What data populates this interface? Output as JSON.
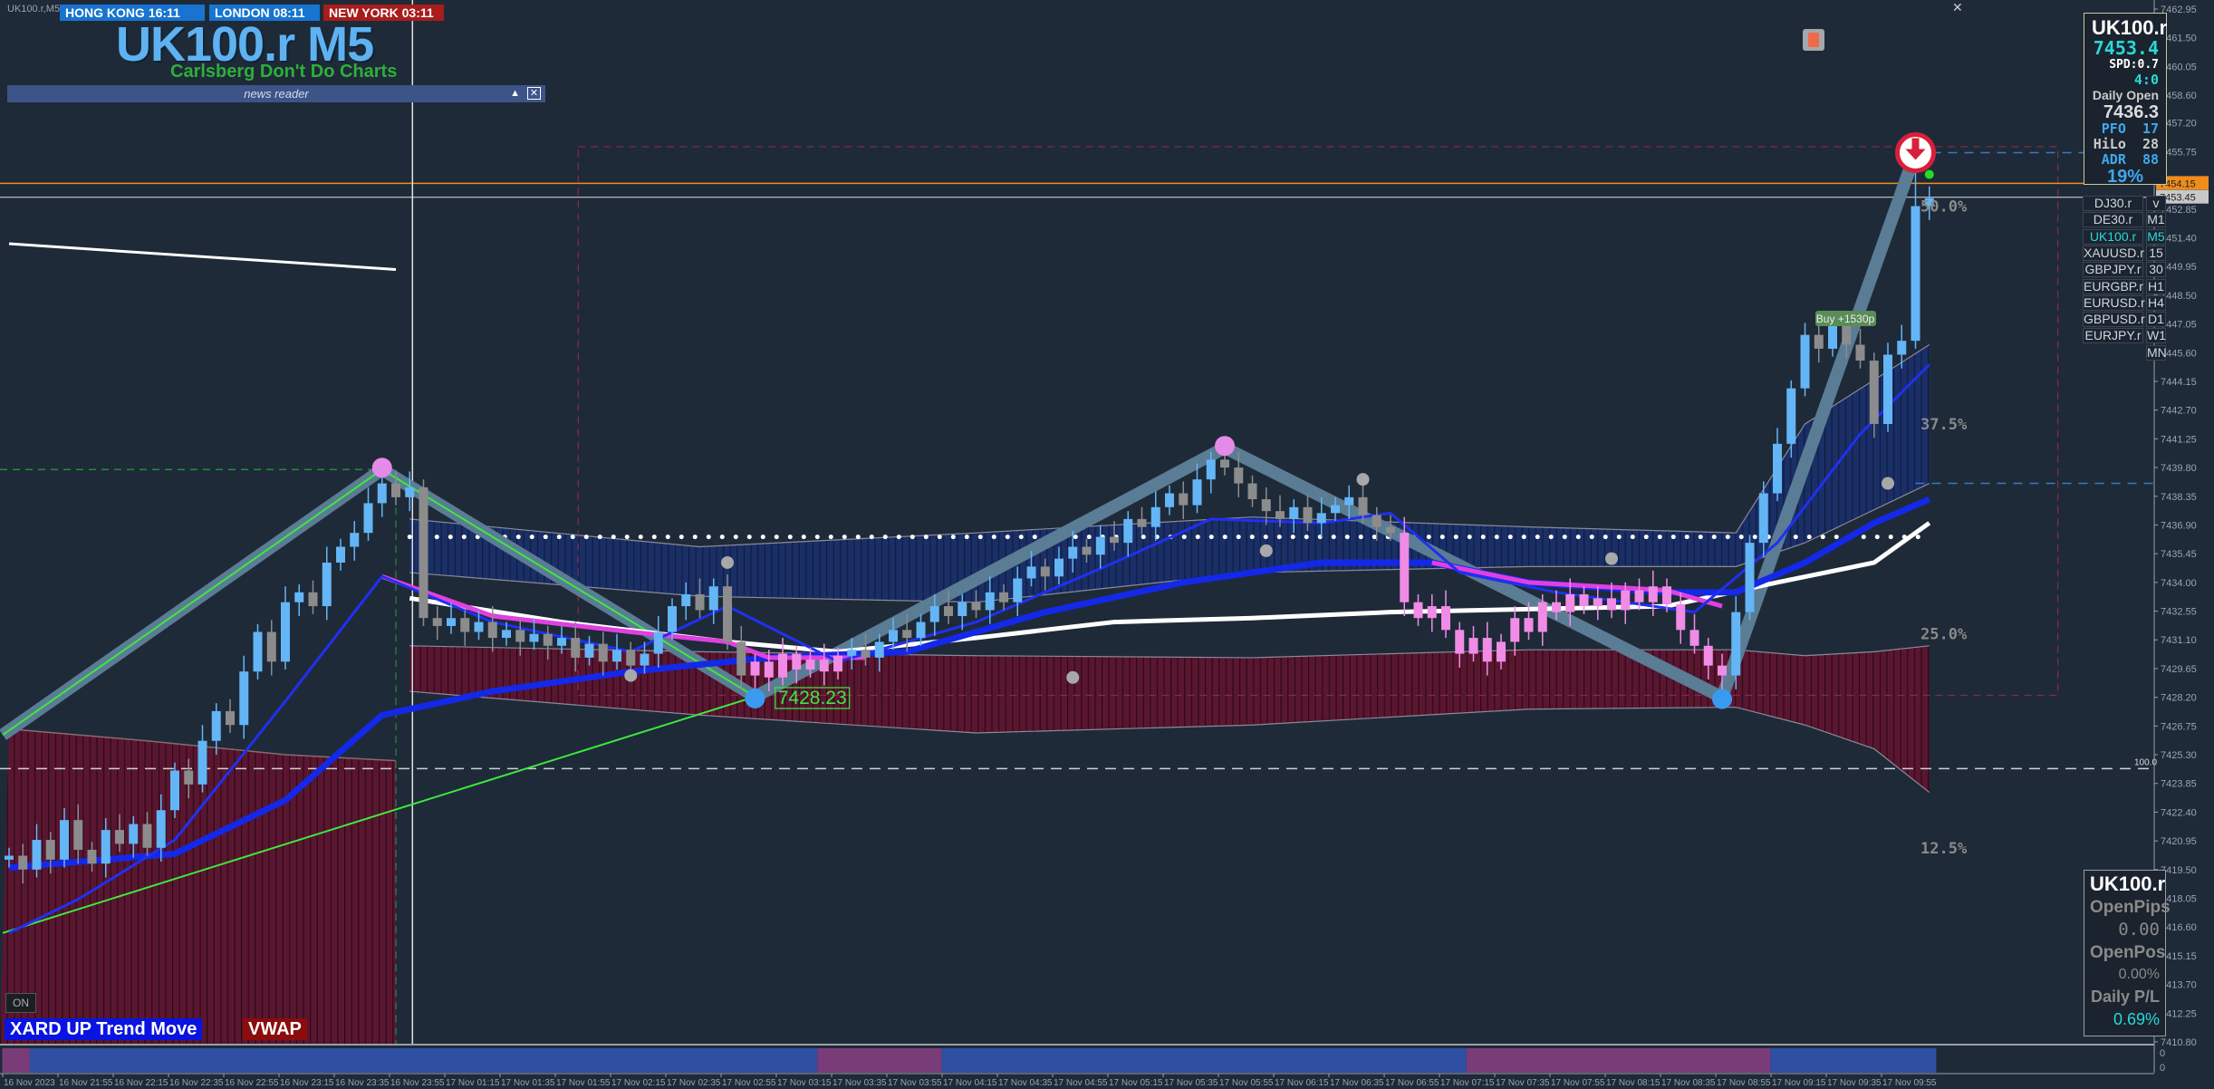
{
  "window": {
    "title": "UK100.r,M5",
    "close_icon": "close-icon"
  },
  "sessions": [
    {
      "label": "HONG KONG  16:11",
      "color": "#1874d0"
    },
    {
      "label": "LONDON  08:11",
      "color": "#1874d0"
    },
    {
      "label": "NEW YORK  03:11",
      "color": "#a81c1c"
    }
  ],
  "header": {
    "symbol_title": "UK100.r M5",
    "slogan": "Carlsberg Don't Do Charts",
    "news_reader": "news reader"
  },
  "info_panel": {
    "symbol": "UK100.r",
    "bid": "7453.4",
    "spread": "SPD:0.7",
    "timer": "4:0",
    "daily_open_label": "Daily Open",
    "daily_open": "7436.3",
    "pfo_label": "PFO",
    "pfo": "17",
    "hilo_label": "HiLo",
    "hilo": "28",
    "adr_label": "ADR",
    "adr": "88",
    "adr_pct": "19%"
  },
  "symbols": [
    "DJ30.r",
    "DE30.r",
    "UK100.r",
    "XAUUSD.r",
    "GBPJPY.r",
    "EURGBP.r",
    "EURUSD.r",
    "GBPUSD.r",
    "EURJPY.r"
  ],
  "active_symbol": "UK100.r",
  "timeframes": [
    "v",
    "M1",
    "M5",
    "15",
    "30",
    "H1",
    "H4",
    "D1",
    "W1",
    "MN"
  ],
  "active_timeframe": "M5",
  "pl_panel": {
    "symbol": "UK100.r",
    "open_pips_label": "OpenPips",
    "open_pips": "0.00",
    "open_pos_label": "OpenPos",
    "open_pos": "0.00%",
    "daily_pl_label": "Daily P/L",
    "daily_pl": "0.69%"
  },
  "bottom_labels": {
    "trend": "XARD UP Trend Move",
    "vwap": "VWAP",
    "on_button": "ON"
  },
  "trade_label": "Buy +1530p",
  "low_price_label": "7428.23",
  "colors": {
    "bg": "#1e2a38",
    "up": "#64b5f6",
    "down": "#8c8c8c",
    "pink": "#f08ce6",
    "accent": "#5fb2f2",
    "orange": "#f08c1a",
    "sub_blue": "#2f4fa2",
    "sub_purple": "#7a3c78"
  },
  "chart_data": {
    "type": "candlestick",
    "price_axis": [
      "7462.95",
      "7461.50",
      "7460.05",
      "7458.60",
      "7457.20",
      "7455.75",
      "7452.85",
      "7451.40",
      "7449.95",
      "7448.50",
      "7447.05",
      "7445.60",
      "7444.15",
      "7442.70",
      "7441.25",
      "7439.80",
      "7438.35",
      "7436.90",
      "7435.45",
      "7434.00",
      "7432.55",
      "7431.10",
      "7429.65",
      "7428.20",
      "7426.75",
      "7425.30",
      "7423.85",
      "7422.40",
      "7420.95",
      "7419.50",
      "7418.05",
      "7416.60",
      "7415.15",
      "7413.70",
      "7412.25",
      "7410.80"
    ],
    "price_tags": [
      {
        "value": "7454.15",
        "color": "#f08c1a"
      },
      {
        "value": "7453.45",
        "color": "#c8c8c8"
      }
    ],
    "sub_axis": [
      "0",
      "0"
    ],
    "time_axis": [
      "16 Nov 2023",
      "16 Nov 21:55",
      "16 Nov 22:15",
      "16 Nov 22:35",
      "16 Nov 22:55",
      "16 Nov 23:15",
      "16 Nov 23:35",
      "16 Nov 23:55",
      "17 Nov 01:15",
      "17 Nov 01:35",
      "17 Nov 01:55",
      "17 Nov 02:15",
      "17 Nov 02:35",
      "17 Nov 02:55",
      "17 Nov 03:15",
      "17 Nov 03:35",
      "17 Nov 03:55",
      "17 Nov 04:15",
      "17 Nov 04:35",
      "17 Nov 04:55",
      "17 Nov 05:15",
      "17 Nov 05:35",
      "17 Nov 05:55",
      "17 Nov 06:15",
      "17 Nov 06:35",
      "17 Nov 06:55",
      "17 Nov 07:15",
      "17 Nov 07:35",
      "17 Nov 07:55",
      "17 Nov 08:15",
      "17 Nov 08:35",
      "17 Nov 08:55",
      "17 Nov 09:15",
      "17 Nov 09:35",
      "17 Nov 09:55"
    ],
    "first_open": 7420.0,
    "closes": [
      7420.2,
      7419.5,
      7421.0,
      7420.0,
      7422.0,
      7420.5,
      7419.8,
      7421.5,
      7420.8,
      7421.8,
      7420.6,
      7422.5,
      7424.5,
      7423.8,
      7426.0,
      7427.5,
      7426.8,
      7429.5,
      7431.5,
      7430.0,
      7433.0,
      7433.5,
      7432.8,
      7435.0,
      7435.8,
      7436.5,
      7438.0,
      7439.0,
      7438.3,
      7438.8,
      7432.2,
      7431.8,
      7432.2,
      7431.5,
      7432.0,
      7431.2,
      7431.6,
      7431.0,
      7431.4,
      7430.8,
      7431.2,
      7430.2,
      7430.9,
      7430.0,
      7430.6,
      7429.8,
      7430.4,
      7431.5,
      7432.8,
      7433.4,
      7432.6,
      7433.8,
      7431.0,
      7429.3,
      7430.0,
      7429.2,
      7430.4,
      7429.6,
      7430.1,
      7429.5,
      7430.3,
      7430.6,
      7430.2,
      7431.0,
      7431.6,
      7431.2,
      7432.0,
      7432.8,
      7432.3,
      7433.0,
      7432.6,
      7433.5,
      7433.0,
      7434.2,
      7434.8,
      7434.3,
      7435.2,
      7435.8,
      7435.4,
      7436.3,
      7436.0,
      7437.2,
      7436.8,
      7437.8,
      7438.5,
      7437.9,
      7439.2,
      7440.2,
      7439.8,
      7439.0,
      7438.2,
      7437.6,
      7437.2,
      7437.8,
      7437.0,
      7437.5,
      7437.9,
      7438.3,
      7437.4,
      7436.8,
      7436.5,
      7433.0,
      7432.2,
      7432.8,
      7431.6,
      7430.4,
      7431.2,
      7430.0,
      7431.0,
      7432.2,
      7431.5,
      7433.0,
      7432.5,
      7433.4,
      7432.8,
      7433.2,
      7432.6,
      7433.6,
      7433.0,
      7433.8,
      7432.9,
      7431.6,
      7430.8,
      7429.8,
      7429.3,
      7432.5,
      7436.0,
      7438.5,
      7441.0,
      7443.8,
      7446.5,
      7445.8,
      7447.0,
      7446.0,
      7445.2,
      7442.0,
      7445.5,
      7446.2,
      7453.0,
      7453.4
    ],
    "pink_ranges": [
      [
        54,
        60
      ],
      [
        101,
        124
      ]
    ],
    "swing_points": [
      [
        -0.46,
        7426.3
      ],
      [
        27,
        7439.7
      ],
      [
        54,
        7428.23
      ],
      [
        88,
        7440.8
      ],
      [
        124,
        7428.2
      ],
      [
        138,
        7455.7
      ]
    ],
    "trendline": [
      [
        -0.46,
        7416.3
      ],
      [
        54,
        7428.23
      ]
    ],
    "ma_fast": [
      [
        0,
        7416.3
      ],
      [
        5,
        7418
      ],
      [
        12,
        7421
      ],
      [
        20,
        7428
      ],
      [
        27,
        7434.3
      ],
      [
        35,
        7432
      ],
      [
        45,
        7430.5
      ],
      [
        52,
        7432.8
      ],
      [
        60,
        7430
      ],
      [
        70,
        7432
      ],
      [
        80,
        7435
      ],
      [
        87,
        7437.2
      ],
      [
        95,
        7437
      ],
      [
        100,
        7437.5
      ],
      [
        105,
        7434.5
      ],
      [
        112,
        7433.5
      ],
      [
        122,
        7432.5
      ],
      [
        128,
        7436
      ],
      [
        134,
        7441.5
      ],
      [
        139,
        7445
      ]
    ],
    "ma_slow": [
      [
        0,
        7419.6
      ],
      [
        12,
        7420.3
      ],
      [
        20,
        7423
      ],
      [
        27,
        7427.3
      ],
      [
        35,
        7428.5
      ],
      [
        45,
        7429.5
      ],
      [
        55,
        7430.2
      ],
      [
        65,
        7430.5
      ],
      [
        75,
        7432.5
      ],
      [
        85,
        7434
      ],
      [
        95,
        7435
      ],
      [
        103,
        7435
      ],
      [
        110,
        7434
      ],
      [
        120,
        7433.5
      ],
      [
        125,
        7433.5
      ],
      [
        130,
        7435
      ],
      [
        135,
        7437
      ],
      [
        139,
        7438.2
      ]
    ],
    "ma_magenta": [
      [
        27,
        7434.3
      ],
      [
        35,
        7432.3
      ],
      [
        45,
        7431.5
      ],
      [
        52,
        7431
      ],
      [
        55,
        7430.2
      ],
      [
        62,
        7430.2
      ],
      [
        103,
        7435
      ],
      [
        110,
        7434
      ],
      [
        120,
        7433.6
      ],
      [
        124,
        7432.8
      ]
    ],
    "vwap_left": [
      [
        0,
        7451.1
      ],
      [
        28,
        7449.8
      ]
    ],
    "vwap": [
      [
        29,
        7433.2
      ],
      [
        40,
        7432
      ],
      [
        52,
        7431
      ],
      [
        60,
        7430.5
      ],
      [
        70,
        7431.2
      ],
      [
        80,
        7432
      ],
      [
        90,
        7432.2
      ],
      [
        100,
        7432.5
      ],
      [
        120,
        7432.8
      ],
      [
        128,
        7434
      ],
      [
        135,
        7435
      ],
      [
        139,
        7437
      ]
    ],
    "blue_band": [
      [
        29,
        7437.2,
        7434.5
      ],
      [
        50,
        7435.8,
        7433.3
      ],
      [
        70,
        7436.5,
        7433
      ],
      [
        90,
        7437.3,
        7434.5
      ],
      [
        110,
        7436.8,
        7434.8
      ],
      [
        125,
        7436.5,
        7434.8
      ],
      [
        130,
        7442,
        7436
      ],
      [
        139,
        7446,
        7439
      ]
    ],
    "red_band": [
      [
        29,
        7430.8,
        7428.5
      ],
      [
        50,
        7430.5,
        7427.3
      ],
      [
        70,
        7430.3,
        7426.4
      ],
      [
        90,
        7430.2,
        7426.8
      ],
      [
        110,
        7430.6,
        7427.6
      ],
      [
        125,
        7430.6,
        7427.7
      ],
      [
        130,
        7430.3,
        7426.8
      ],
      [
        135,
        7430.5,
        7425.6
      ],
      [
        139,
        7430.8,
        7423.4
      ]
    ],
    "red_left": [
      [
        0,
        7426.6
      ],
      [
        10,
        7426
      ],
      [
        20,
        7425.3
      ],
      [
        28,
        7425
      ]
    ],
    "daily_open_line": 7436.3,
    "fib_levels": [
      {
        "label": "50.0%",
        "price": 7453.0
      },
      {
        "label": "37.5%",
        "price": 7442.0
      },
      {
        "label": "25.0%",
        "price": 7431.4
      },
      {
        "label": "12.5%",
        "price": 7420.6
      }
    ],
    "level_100": {
      "label": "100.0",
      "price": 7424.6
    },
    "range_box": {
      "top": 7456.0,
      "bottom": 7428.3,
      "from_bar": 41.2,
      "to_bar": 148.3
    },
    "sub_segments": [
      [
        0,
        1,
        "purple"
      ],
      [
        2,
        58,
        "blue"
      ],
      [
        59,
        67,
        "purple"
      ],
      [
        68,
        105,
        "blue"
      ],
      [
        106,
        127,
        "purple"
      ],
      [
        128,
        139,
        "blue"
      ]
    ]
  }
}
